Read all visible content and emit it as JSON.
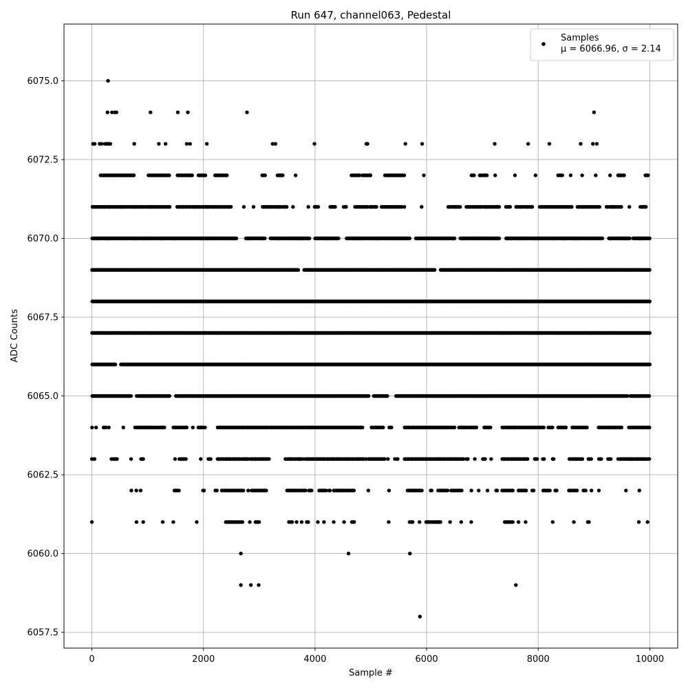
{
  "chart_data": {
    "type": "scatter",
    "title": "Run 647, channel063, Pedestal",
    "xlabel": "Sample #",
    "ylabel": "ADC Counts",
    "xlim": [
      -500,
      10500
    ],
    "ylim": [
      6057.0,
      6076.8
    ],
    "xticks": [
      0,
      2000,
      4000,
      6000,
      8000,
      10000
    ],
    "xtick_labels": [
      "0",
      "2000",
      "4000",
      "6000",
      "8000",
      "10000"
    ],
    "yticks": [
      6057.5,
      6060.0,
      6062.5,
      6065.0,
      6067.5,
      6070.0,
      6072.5,
      6075.0
    ],
    "ytick_labels": [
      "6057.5",
      "6060.0",
      "6062.5",
      "6065.0",
      "6067.5",
      "6070.0",
      "6072.5",
      "6075.0"
    ],
    "grid": true,
    "legend_position": "top-right",
    "series": [
      {
        "name": "Samples",
        "marker": "dot",
        "color": "#000000",
        "stats_label": "μ = 6066.96, σ = 2.14",
        "mean": 6066.96,
        "std": 2.14,
        "n_samples": 10000,
        "x_range": [
          0,
          9999
        ],
        "levels": [
          {
            "y": 6072,
            "x_ranges": [
              [
                150,
                770
              ],
              [
                1000,
                1400
              ],
              [
                1530,
                1800
              ],
              [
                1900,
                2040
              ],
              [
                2200,
                2420
              ],
              [
                3050,
                3120
              ],
              [
                3320,
                3420
              ],
              [
                3640,
                3660
              ],
              [
                4650,
                4800
              ],
              [
                4850,
                5000
              ],
              [
                5250,
                5600
              ],
              [
                5940,
                5950
              ],
              [
                6800,
                6850
              ],
              [
                6950,
                7080
              ],
              [
                7220,
                7240
              ],
              [
                7580,
                7600
              ],
              [
                7940,
                7960
              ],
              [
                8350,
                8440
              ],
              [
                8580,
                8600
              ],
              [
                8780,
                8800
              ],
              [
                9020,
                9040
              ],
              [
                9280,
                9300
              ],
              [
                9420,
                9540
              ],
              [
                9920,
                9990
              ]
            ]
          },
          {
            "y": 6071,
            "x_ranges": [
              [
                0,
                1400
              ],
              [
                1520,
                2500
              ],
              [
                2710,
                2730
              ],
              [
                2890,
                2910
              ],
              [
                3050,
                3500
              ],
              [
                3600,
                3620
              ],
              [
                3870,
                3890
              ],
              [
                3980,
                4060
              ],
              [
                4260,
                4360
              ],
              [
                4500,
                4560
              ],
              [
                4710,
                4940
              ],
              [
                4980,
                5100
              ],
              [
                5180,
                5550
              ],
              [
                5590,
                5600
              ],
              [
                5900,
                5920
              ],
              [
                6380,
                6600
              ],
              [
                6700,
                7300
              ],
              [
                7420,
                7500
              ],
              [
                7600,
                7900
              ],
              [
                8020,
                8600
              ],
              [
                8700,
                9100
              ],
              [
                9220,
                9500
              ],
              [
                9620,
                9640
              ],
              [
                9830,
                9930
              ]
            ]
          },
          {
            "y": 6070,
            "x_ranges": [
              [
                0,
                2600
              ],
              [
                2760,
                3100
              ],
              [
                3200,
                3900
              ],
              [
                4000,
                4430
              ],
              [
                4560,
                5700
              ],
              [
                5800,
                6500
              ],
              [
                6600,
                7300
              ],
              [
                7420,
                9150
              ],
              [
                9260,
                9650
              ],
              [
                9700,
                9999
              ]
            ]
          },
          {
            "y": 6069,
            "x_ranges": [
              [
                0,
                3700
              ],
              [
                3800,
                6150
              ],
              [
                6250,
                9999
              ]
            ]
          },
          {
            "y": 6068,
            "x_ranges": [
              [
                0,
                9999
              ]
            ]
          },
          {
            "y": 6067,
            "x_ranges": [
              [
                0,
                9999
              ]
            ]
          },
          {
            "y": 6066,
            "x_ranges": [
              [
                0,
                420
              ],
              [
                520,
                9999
              ]
            ]
          },
          {
            "y": 6065,
            "x_ranges": [
              [
                0,
                700
              ],
              [
                800,
                1400
              ],
              [
                1500,
                4960
              ],
              [
                5050,
                5300
              ],
              [
                5450,
                9600
              ],
              [
                9650,
                9999
              ]
            ]
          },
          {
            "y": 6064,
            "x_ranges": [
              [
                0,
                10
              ],
              [
                70,
                90
              ],
              [
                200,
                260
              ],
              [
                300,
                320
              ],
              [
                550,
                570
              ],
              [
                770,
                1300
              ],
              [
                1460,
                1700
              ],
              [
                1800,
                1820
              ],
              [
                1900,
                2040
              ],
              [
                2250,
                4850
              ],
              [
                5000,
                5220
              ],
              [
                5320,
                5380
              ],
              [
                5600,
                6500
              ],
              [
                6580,
                6900
              ],
              [
                7020,
                7150
              ],
              [
                7350,
                8100
              ],
              [
                8180,
                8260
              ],
              [
                8350,
                8500
              ],
              [
                8600,
                8880
              ],
              [
                9080,
                9500
              ],
              [
                9620,
                9999
              ]
            ]
          },
          {
            "y": 6063,
            "x_ranges": [
              [
                0,
                50
              ],
              [
                350,
                450
              ],
              [
                700,
                720
              ],
              [
                870,
                920
              ],
              [
                1480,
                1500
              ],
              [
                1560,
                1700
              ],
              [
                1950,
                1970
              ],
              [
                2080,
                2130
              ],
              [
                2250,
                3180
              ],
              [
                3460,
                3790
              ],
              [
                3820,
                4920
              ],
              [
                4950,
                5250
              ],
              [
                5300,
                5320
              ],
              [
                5430,
                5500
              ],
              [
                5600,
                6660
              ],
              [
                6710,
                6740
              ],
              [
                6850,
                6870
              ],
              [
                7000,
                7050
              ],
              [
                7150,
                7170
              ],
              [
                7350,
                7810
              ],
              [
                7930,
                7980
              ],
              [
                8080,
                8110
              ],
              [
                8250,
                8280
              ],
              [
                8550,
                8800
              ],
              [
                8900,
                8950
              ],
              [
                9080,
                9130
              ],
              [
                9250,
                9300
              ],
              [
                9430,
                9999
              ]
            ]
          },
          {
            "y": 6062,
            "x_ranges": [
              [
                700,
                720
              ],
              [
                790,
                810
              ],
              [
                860,
                880
              ],
              [
                1480,
                1560
              ],
              [
                1980,
                2010
              ],
              [
                2210,
                2240
              ],
              [
                2320,
                2720
              ],
              [
                2790,
                2810
              ],
              [
                2860,
                3140
              ],
              [
                3490,
                3830
              ],
              [
                3880,
                3950
              ],
              [
                4070,
                4200
              ],
              [
                4240,
                4280
              ],
              [
                4330,
                4500
              ],
              [
                4520,
                4700
              ],
              [
                4950,
                4970
              ],
              [
                5320,
                5340
              ],
              [
                5650,
                5930
              ],
              [
                6060,
                6100
              ],
              [
                6200,
                6380
              ],
              [
                6430,
                6630
              ],
              [
                6800,
                6810
              ],
              [
                6930,
                6950
              ],
              [
                7080,
                7100
              ],
              [
                7240,
                7280
              ],
              [
                7350,
                7550
              ],
              [
                7640,
                7800
              ],
              [
                7880,
                7920
              ],
              [
                8080,
                8220
              ],
              [
                8300,
                8330
              ],
              [
                8540,
                8700
              ],
              [
                8800,
                8850
              ],
              [
                8950,
                8970
              ],
              [
                9080,
                9100
              ],
              [
                9560,
                9580
              ],
              [
                9800,
                9820
              ]
            ]
          },
          {
            "y": 6061,
            "x_ranges": [
              [
                0,
                0
              ],
              [
                800,
                800
              ],
              [
                920,
                920
              ],
              [
                1270,
                1270
              ],
              [
                1460,
                1460
              ],
              [
                1880,
                1880
              ],
              [
                2400,
                2700
              ],
              [
                2820,
                2830
              ],
              [
                2920,
                3000
              ],
              [
                3530,
                3600
              ],
              [
                3660,
                3680
              ],
              [
                3750,
                3760
              ],
              [
                3850,
                3880
              ],
              [
                4040,
                4050
              ],
              [
                4160,
                4160
              ],
              [
                4330,
                4340
              ],
              [
                4520,
                4530
              ],
              [
                4650,
                4700
              ],
              [
                5320,
                5320
              ],
              [
                5690,
                5750
              ],
              [
                5870,
                5890
              ],
              [
                5980,
                6260
              ],
              [
                6420,
                6420
              ],
              [
                6620,
                6620
              ],
              [
                6800,
                6800
              ],
              [
                7390,
                7550
              ],
              [
                7640,
                7650
              ],
              [
                7770,
                7780
              ],
              [
                8260,
                8260
              ],
              [
                8630,
                8640
              ],
              [
                8880,
                8920
              ],
              [
                9800,
                9810
              ],
              [
                9950,
                9960
              ]
            ]
          }
        ],
        "points": [
          [
            20,
            6073
          ],
          [
            50,
            6073
          ],
          [
            140,
            6073
          ],
          [
            180,
            6073
          ],
          [
            240,
            6073
          ],
          [
            270,
            6073
          ],
          [
            300,
            6073
          ],
          [
            330,
            6073
          ],
          [
            760,
            6073
          ],
          [
            1200,
            6073
          ],
          [
            1320,
            6073
          ],
          [
            1700,
            6073
          ],
          [
            1760,
            6073
          ],
          [
            2060,
            6073
          ],
          [
            3240,
            6073
          ],
          [
            3290,
            6073
          ],
          [
            3990,
            6073
          ],
          [
            4920,
            6073
          ],
          [
            4940,
            6073
          ],
          [
            5620,
            6073
          ],
          [
            5920,
            6073
          ],
          [
            7220,
            6073
          ],
          [
            7820,
            6073
          ],
          [
            8200,
            6073
          ],
          [
            8760,
            6073
          ],
          [
            8980,
            6073
          ],
          [
            9050,
            6073
          ],
          [
            280,
            6074
          ],
          [
            360,
            6074
          ],
          [
            410,
            6074
          ],
          [
            440,
            6074
          ],
          [
            1050,
            6074
          ],
          [
            1540,
            6074
          ],
          [
            1720,
            6074
          ],
          [
            2780,
            6074
          ],
          [
            9000,
            6074
          ],
          [
            290,
            6075
          ],
          [
            2670,
            6060
          ],
          [
            4600,
            6060
          ],
          [
            5700,
            6060
          ],
          [
            2670,
            6059
          ],
          [
            2850,
            6059
          ],
          [
            2990,
            6059
          ],
          [
            7600,
            6059
          ],
          [
            5880,
            6058
          ]
        ]
      }
    ]
  }
}
